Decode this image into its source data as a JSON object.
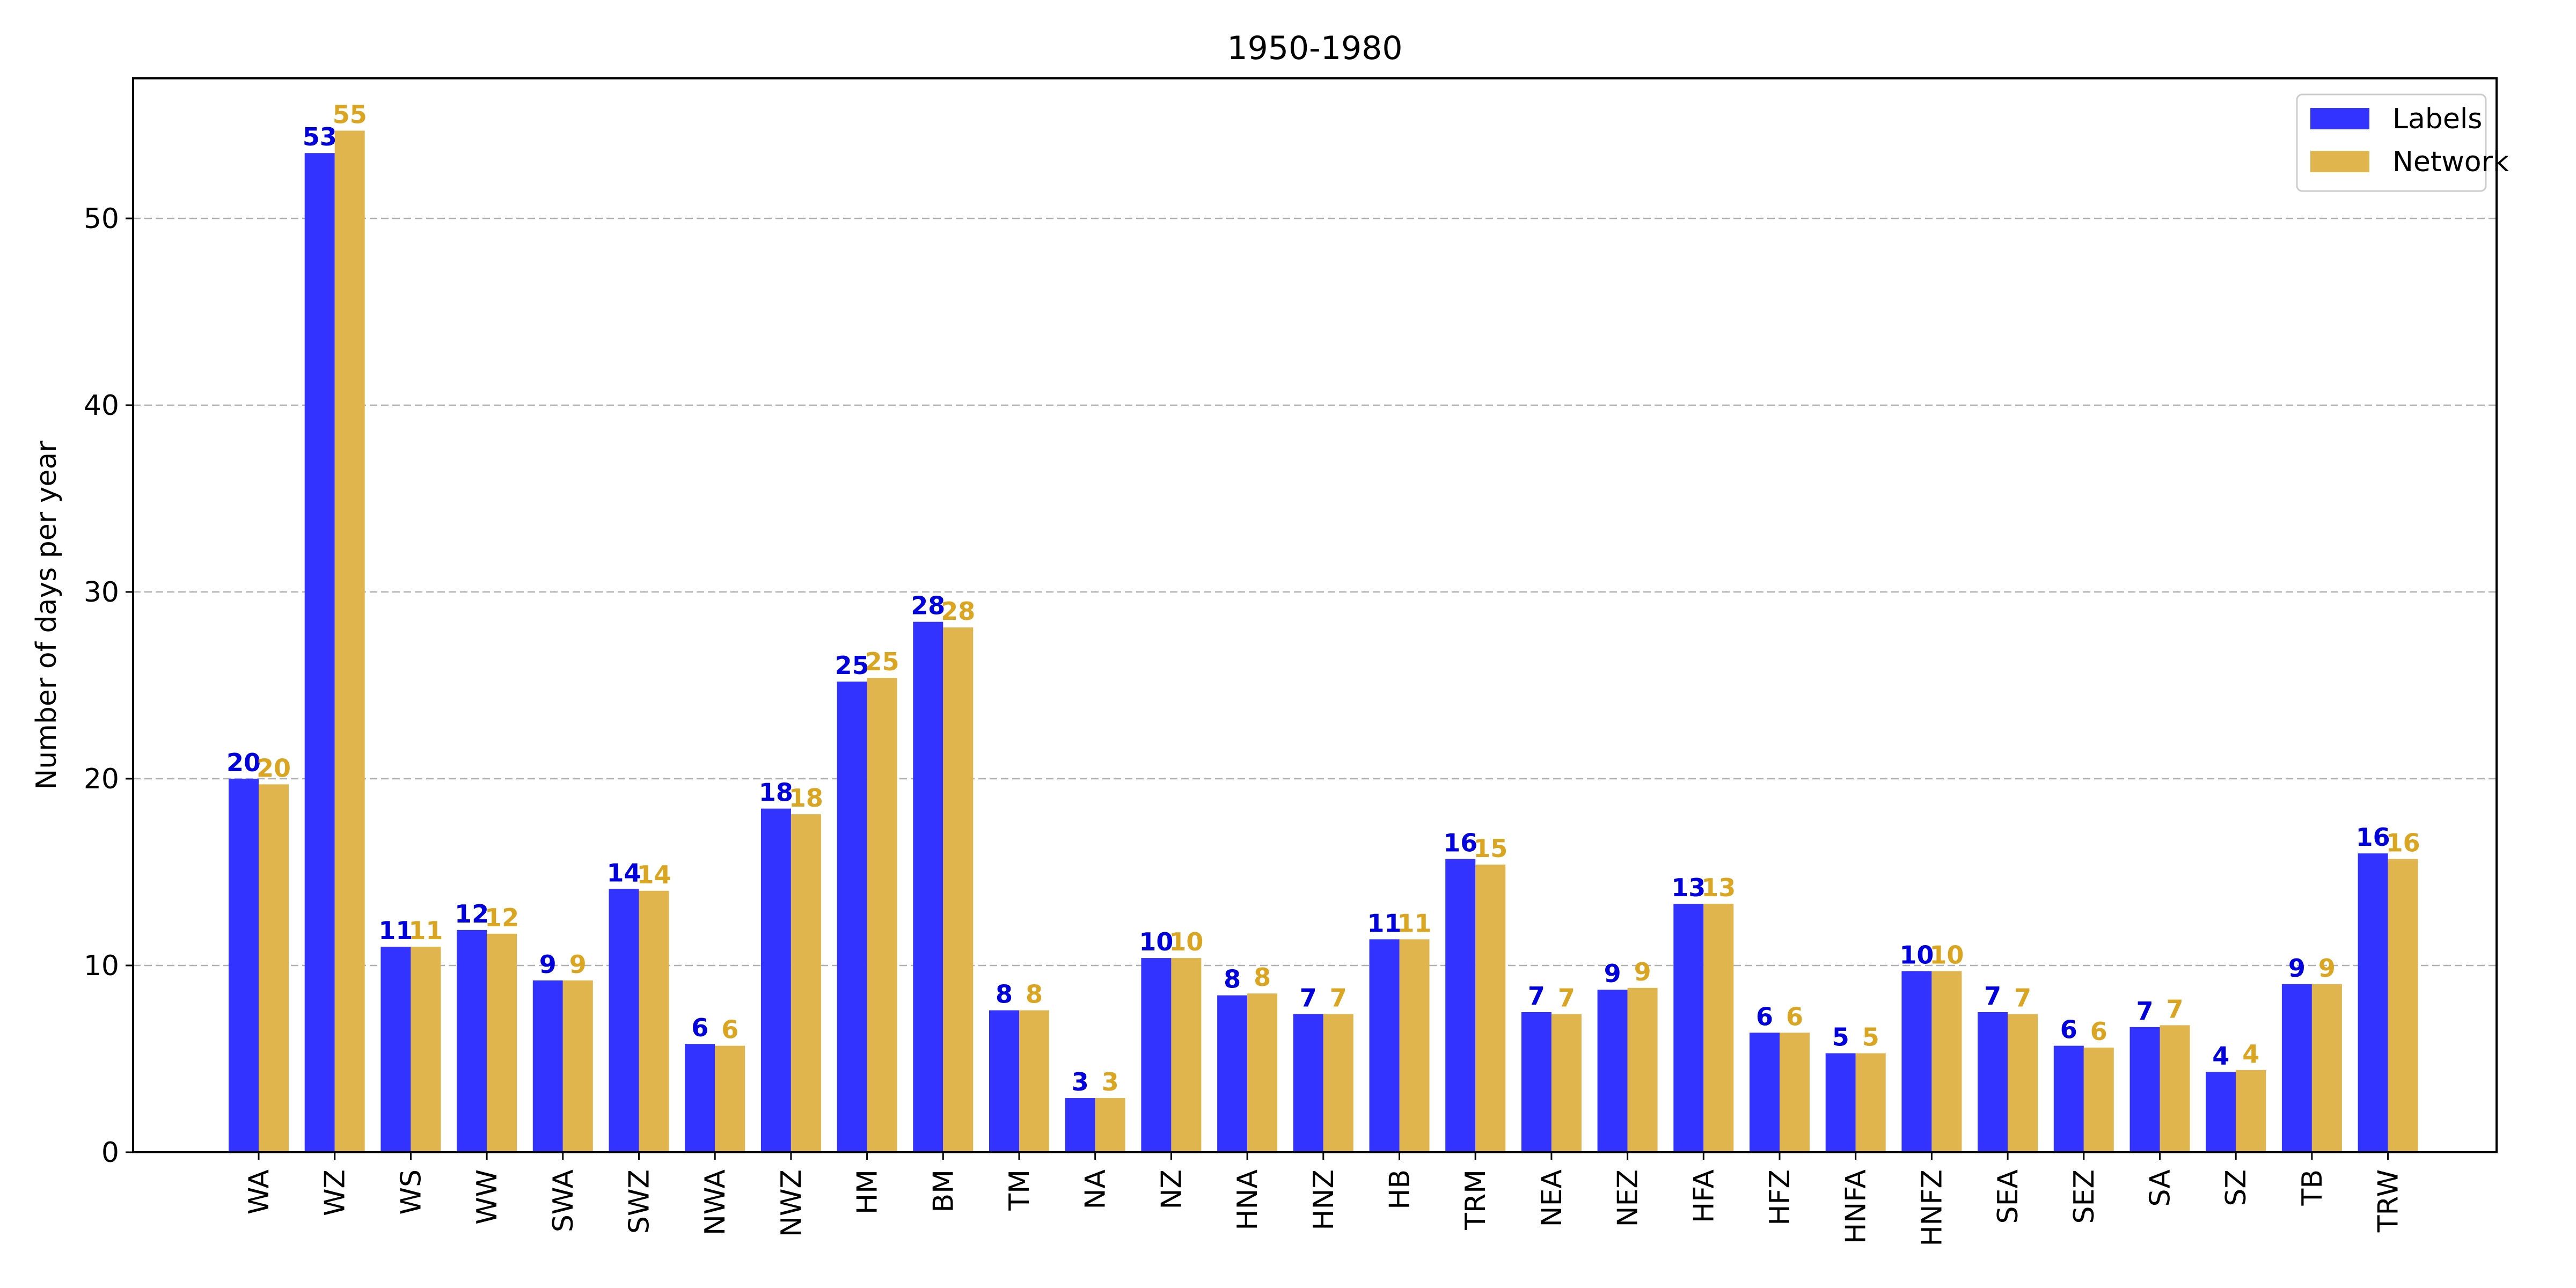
{
  "chart_data": {
    "type": "bar",
    "title": "1950-1980",
    "xlabel": "",
    "ylabel": "Number of days per year",
    "ylim": [
      0,
      57.5
    ],
    "yticks": [
      0,
      10,
      20,
      30,
      40,
      50
    ],
    "grid": "horizontal dashed",
    "legend_position": "top-right",
    "categories": [
      "WA",
      "WZ",
      "WS",
      "WW",
      "SWA",
      "SWZ",
      "NWA",
      "NWZ",
      "HM",
      "BM",
      "TM",
      "NA",
      "NZ",
      "HNA",
      "HNZ",
      "HB",
      "TRM",
      "NEA",
      "NEZ",
      "HFA",
      "HFZ",
      "HNFA",
      "HNFZ",
      "SEA",
      "SEZ",
      "SA",
      "SZ",
      "TB",
      "TRW"
    ],
    "series": [
      {
        "name": "Labels",
        "color": "#3333ff",
        "label_color": "#0000dd",
        "values": [
          20.0,
          53.5,
          11.0,
          11.9,
          9.2,
          14.1,
          5.8,
          18.4,
          25.2,
          28.4,
          7.6,
          2.9,
          10.4,
          8.4,
          7.4,
          11.4,
          15.7,
          7.5,
          8.7,
          13.3,
          6.4,
          5.3,
          9.7,
          7.5,
          5.7,
          6.7,
          4.3,
          9.0,
          16.0
        ],
        "labels": [
          "20",
          "53",
          "11",
          "12",
          "9",
          "14",
          "6",
          "18",
          "25",
          "28",
          "8",
          "3",
          "10",
          "8",
          "7",
          "11",
          "16",
          "7",
          "9",
          "13",
          "6",
          "5",
          "10",
          "7",
          "6",
          "7",
          "4",
          "9",
          "16"
        ]
      },
      {
        "name": "Network",
        "color": "#e1b54d",
        "label_color": "#daa520",
        "values": [
          19.7,
          54.7,
          11.0,
          11.7,
          9.2,
          14.0,
          5.7,
          18.1,
          25.4,
          28.1,
          7.6,
          2.9,
          10.4,
          8.5,
          7.4,
          11.4,
          15.4,
          7.4,
          8.8,
          13.3,
          6.4,
          5.3,
          9.7,
          7.4,
          5.6,
          6.8,
          4.4,
          9.0,
          15.7
        ],
        "labels": [
          "20",
          "55",
          "11",
          "12",
          "9",
          "14",
          "6",
          "18",
          "25",
          "28",
          "8",
          "3",
          "10",
          "8",
          "7",
          "11",
          "15",
          "7",
          "9",
          "13",
          "6",
          "5",
          "10",
          "7",
          "6",
          "7",
          "4",
          "9",
          "16"
        ]
      }
    ]
  }
}
